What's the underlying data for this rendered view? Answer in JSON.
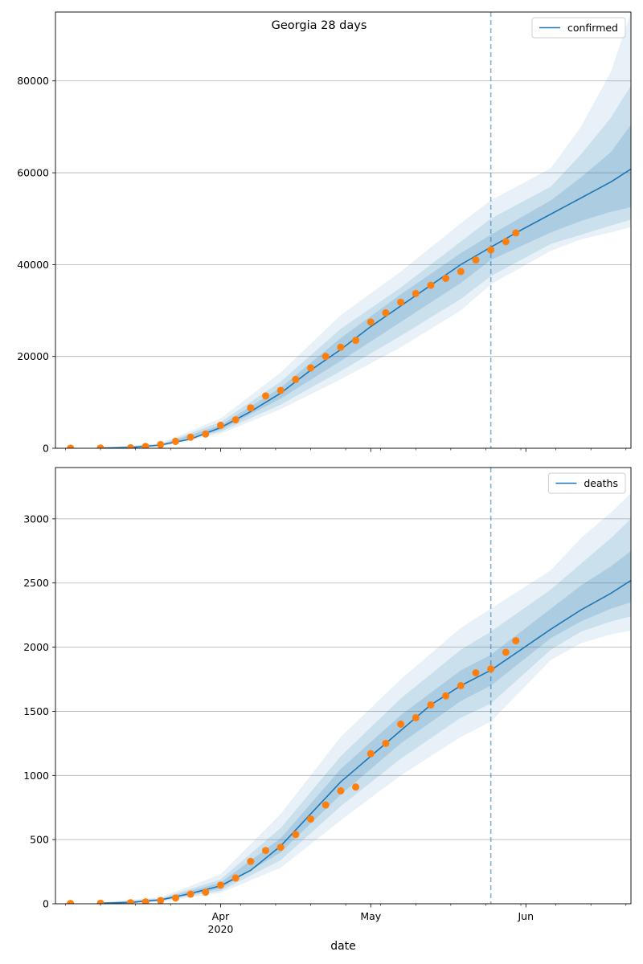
{
  "chart_data": [
    {
      "type": "line",
      "title": "Georgia 28 days",
      "xlabel": "",
      "ylabel": "",
      "legend": "top-right",
      "grid": "y",
      "ylim": [
        0,
        95000
      ],
      "yticks": [
        0,
        20000,
        40000,
        60000,
        80000
      ],
      "ytick_labels": [
        "0",
        "20000",
        "40000",
        "60000",
        "80000"
      ],
      "forecast_start": "2020-05-25",
      "series": [
        {
          "name": "confirmed",
          "kind": "median-forecast",
          "color": "#1f77b4",
          "x": [
            "2020-03-08",
            "2020-03-14",
            "2020-03-20",
            "2020-03-26",
            "2020-04-01",
            "2020-04-07",
            "2020-04-13",
            "2020-04-19",
            "2020-04-25",
            "2020-05-01",
            "2020-05-07",
            "2020-05-13",
            "2020-05-19",
            "2020-05-25",
            "2020-05-31",
            "2020-06-06",
            "2020-06-12",
            "2020-06-18",
            "2020-06-22"
          ],
          "y": [
            50,
            150,
            700,
            2000,
            4500,
            8000,
            12000,
            17000,
            21500,
            26500,
            31000,
            35500,
            40000,
            43800,
            47500,
            51000,
            54500,
            58000,
            60800
          ]
        },
        {
          "name": "observed",
          "kind": "scatter",
          "color": "#ff7f0e",
          "x": [
            "2020-03-02",
            "2020-03-08",
            "2020-03-14",
            "2020-03-17",
            "2020-03-20",
            "2020-03-23",
            "2020-03-26",
            "2020-03-29",
            "2020-04-01",
            "2020-04-04",
            "2020-04-07",
            "2020-04-10",
            "2020-04-13",
            "2020-04-16",
            "2020-04-19",
            "2020-04-22",
            "2020-04-25",
            "2020-04-28",
            "2020-05-01",
            "2020-05-04",
            "2020-05-07",
            "2020-05-10",
            "2020-05-13",
            "2020-05-16",
            "2020-05-19",
            "2020-05-22",
            "2020-05-25",
            "2020-05-28",
            "2020-05-30"
          ],
          "y": [
            30,
            50,
            100,
            400,
            800,
            1500,
            2400,
            3100,
            5000,
            6200,
            8800,
            11400,
            12600,
            15000,
            17500,
            20000,
            22000,
            23500,
            27500,
            29500,
            31800,
            33700,
            35500,
            37000,
            38500,
            41000,
            43200,
            45000,
            46900
          ]
        }
      ],
      "bands": [
        {
          "name": "band-95",
          "opacity": 0.1,
          "x": [
            "2020-03-08",
            "2020-03-20",
            "2020-04-01",
            "2020-04-13",
            "2020-04-25",
            "2020-05-07",
            "2020-05-19",
            "2020-05-25",
            "2020-06-06",
            "2020-06-12",
            "2020-06-18",
            "2020-06-22"
          ],
          "lo": [
            0,
            400,
            3200,
            8500,
            15000,
            22000,
            30000,
            35700,
            43000,
            45500,
            47000,
            48200
          ],
          "hi": [
            100,
            1100,
            6500,
            16500,
            29000,
            38500,
            49000,
            54000,
            61000,
            70000,
            82000,
            95000
          ]
        },
        {
          "name": "band-80",
          "opacity": 0.14,
          "x": [
            "2020-03-08",
            "2020-03-20",
            "2020-04-01",
            "2020-04-13",
            "2020-04-25",
            "2020-05-07",
            "2020-05-19",
            "2020-05-25",
            "2020-06-06",
            "2020-06-12",
            "2020-06-18",
            "2020-06-22"
          ],
          "lo": [
            20,
            500,
            3600,
            9500,
            16800,
            24500,
            32500,
            37500,
            44500,
            46500,
            48500,
            49800
          ],
          "hi": [
            80,
            900,
            5700,
            14500,
            26000,
            35000,
            45000,
            50000,
            57000,
            64000,
            72000,
            79000
          ]
        },
        {
          "name": "band-50",
          "opacity": 0.18,
          "x": [
            "2020-03-08",
            "2020-03-20",
            "2020-04-01",
            "2020-04-13",
            "2020-04-25",
            "2020-05-07",
            "2020-05-19",
            "2020-05-25",
            "2020-06-06",
            "2020-06-12",
            "2020-06-18",
            "2020-06-22"
          ],
          "lo": [
            40,
            600,
            4000,
            10800,
            19000,
            27500,
            36000,
            41000,
            47000,
            49500,
            51500,
            52500
          ],
          "hi": [
            60,
            800,
            5000,
            13200,
            24000,
            33500,
            42500,
            46500,
            54000,
            59000,
            64500,
            70500
          ]
        }
      ]
    },
    {
      "type": "line",
      "title": "",
      "xlabel": "date",
      "ylabel": "",
      "legend": "top-right",
      "grid": "y",
      "ylim": [
        0,
        3400
      ],
      "yticks": [
        0,
        500,
        1000,
        1500,
        2000,
        2500,
        3000
      ],
      "ytick_labels": [
        "0",
        "500",
        "1000",
        "1500",
        "2000",
        "2500",
        "3000"
      ],
      "xticks": [
        "2020-04-01",
        "2020-05-01",
        "2020-06-01"
      ],
      "xtick_labels": [
        "Apr",
        "May",
        "Jun"
      ],
      "xtick_sublabels": [
        "2020",
        "",
        ""
      ],
      "forecast_start": "2020-05-25",
      "series": [
        {
          "name": "deaths",
          "kind": "median-forecast",
          "color": "#1f77b4",
          "x": [
            "2020-03-08",
            "2020-03-14",
            "2020-03-20",
            "2020-03-26",
            "2020-04-01",
            "2020-04-07",
            "2020-04-13",
            "2020-04-19",
            "2020-04-25",
            "2020-05-01",
            "2020-05-07",
            "2020-05-13",
            "2020-05-19",
            "2020-05-25",
            "2020-05-31",
            "2020-06-06",
            "2020-06-12",
            "2020-06-18",
            "2020-06-22"
          ],
          "y": [
            5,
            10,
            30,
            80,
            140,
            260,
            450,
            700,
            950,
            1150,
            1350,
            1550,
            1700,
            1820,
            1980,
            2140,
            2290,
            2420,
            2520
          ]
        },
        {
          "name": "observed",
          "kind": "scatter",
          "color": "#ff7f0e",
          "x": [
            "2020-03-02",
            "2020-03-08",
            "2020-03-14",
            "2020-03-17",
            "2020-03-20",
            "2020-03-23",
            "2020-03-26",
            "2020-03-29",
            "2020-04-01",
            "2020-04-04",
            "2020-04-07",
            "2020-04-10",
            "2020-04-13",
            "2020-04-16",
            "2020-04-19",
            "2020-04-22",
            "2020-04-25",
            "2020-04-28",
            "2020-05-01",
            "2020-05-04",
            "2020-05-07",
            "2020-05-10",
            "2020-05-13",
            "2020-05-16",
            "2020-05-19",
            "2020-05-22",
            "2020-05-25",
            "2020-05-28",
            "2020-05-30"
          ],
          "y": [
            2,
            4,
            8,
            15,
            25,
            45,
            75,
            90,
            145,
            200,
            330,
            415,
            440,
            540,
            660,
            770,
            880,
            910,
            1170,
            1250,
            1400,
            1450,
            1550,
            1620,
            1700,
            1800,
            1830,
            1960,
            2050
          ]
        }
      ],
      "bands": [
        {
          "name": "band-95",
          "opacity": 0.1,
          "x": [
            "2020-03-08",
            "2020-03-20",
            "2020-04-01",
            "2020-04-13",
            "2020-04-25",
            "2020-05-07",
            "2020-05-19",
            "2020-05-25",
            "2020-06-06",
            "2020-06-12",
            "2020-06-18",
            "2020-06-22"
          ],
          "lo": [
            0,
            15,
            85,
            280,
            650,
            1000,
            1300,
            1420,
            1900,
            2030,
            2100,
            2130
          ],
          "hi": [
            10,
            50,
            230,
            700,
            1300,
            1750,
            2150,
            2300,
            2600,
            2850,
            3050,
            3200
          ]
        },
        {
          "name": "band-80",
          "opacity": 0.14,
          "x": [
            "2020-03-08",
            "2020-03-20",
            "2020-04-01",
            "2020-04-13",
            "2020-04-25",
            "2020-05-07",
            "2020-05-19",
            "2020-05-25",
            "2020-06-06",
            "2020-06-12",
            "2020-06-18",
            "2020-06-22"
          ],
          "lo": [
            2,
            20,
            100,
            340,
            760,
            1130,
            1450,
            1560,
            1980,
            2120,
            2200,
            2240
          ],
          "hi": [
            8,
            42,
            190,
            590,
            1150,
            1600,
            1980,
            2120,
            2450,
            2650,
            2850,
            3000
          ]
        },
        {
          "name": "band-50",
          "opacity": 0.18,
          "x": [
            "2020-03-08",
            "2020-03-20",
            "2020-04-01",
            "2020-04-13",
            "2020-04-25",
            "2020-05-07",
            "2020-05-19",
            "2020-05-25",
            "2020-06-06",
            "2020-06-12",
            "2020-06-18",
            "2020-06-22"
          ],
          "lo": [
            3,
            24,
            118,
            400,
            850,
            1250,
            1580,
            1700,
            2070,
            2200,
            2300,
            2350
          ],
          "hi": [
            7,
            36,
            165,
            510,
            1050,
            1470,
            1820,
            1940,
            2300,
            2480,
            2630,
            2750
          ]
        }
      ]
    }
  ]
}
